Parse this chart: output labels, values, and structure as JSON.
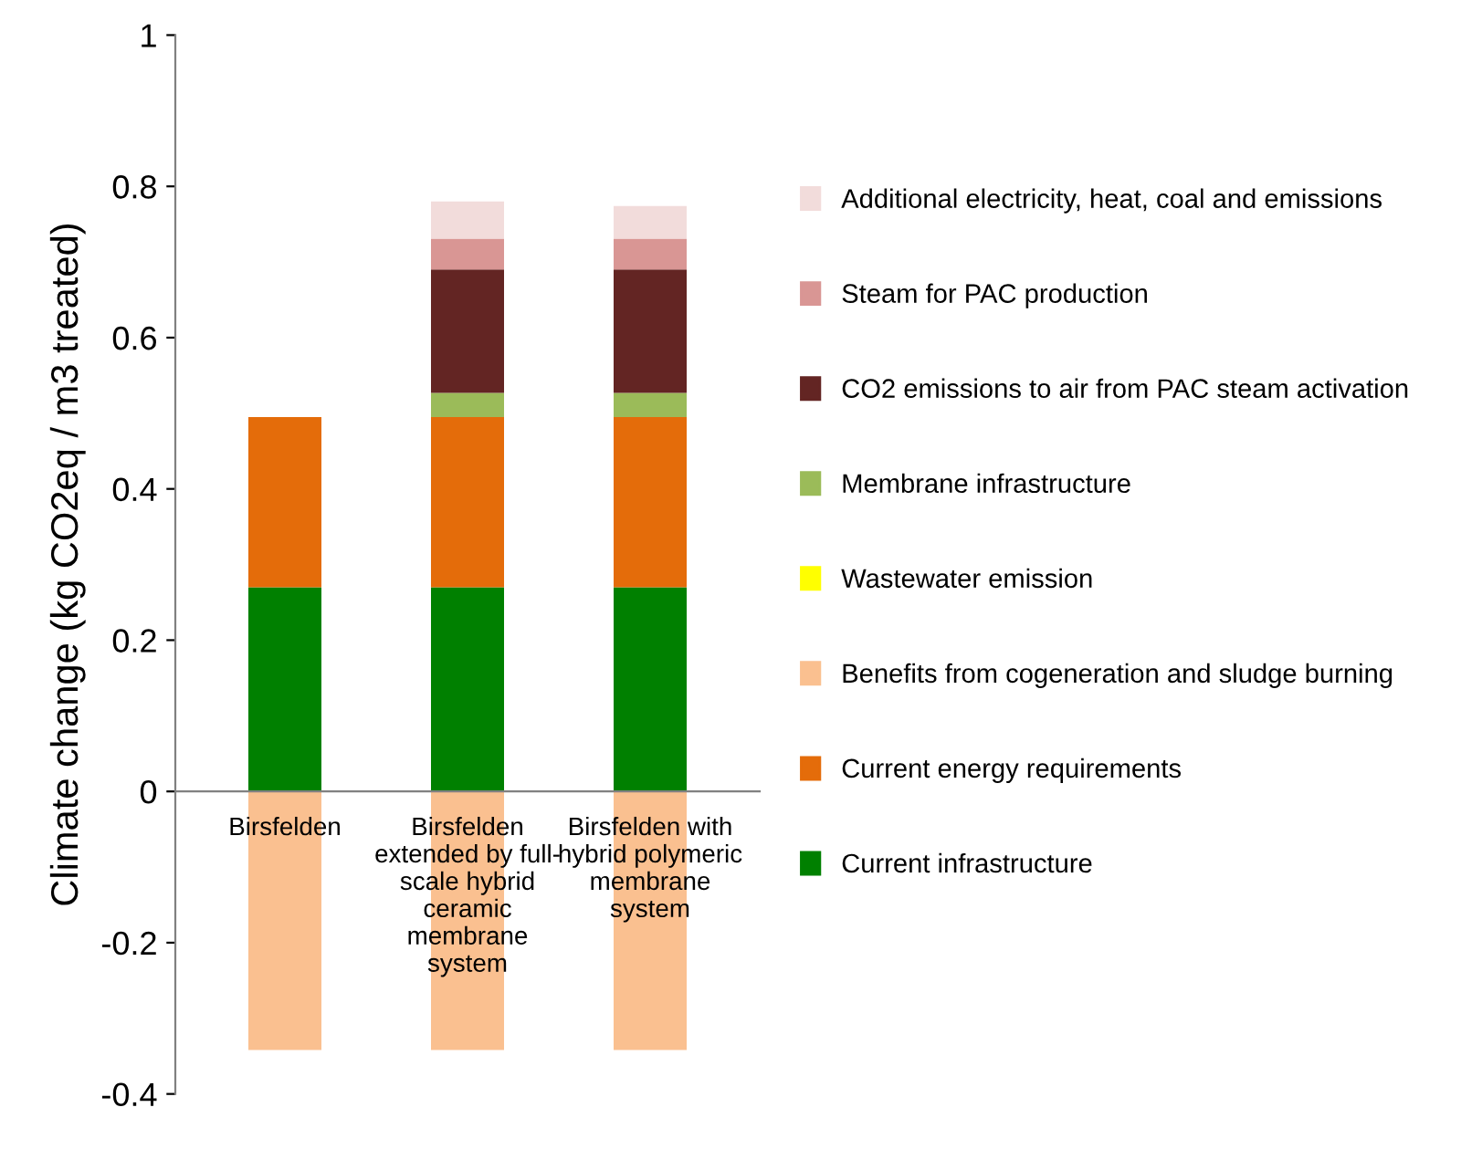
{
  "chart_data": {
    "type": "bar",
    "stacked": true,
    "ylabel": "Climate change (kg CO2eq / m3 treated)",
    "categories": [
      "Birsfelden",
      "Birsfelden\nextended by full-\nscale hybrid\nceramic\nmembrane\nsystem",
      "Birsfelden with\nhybrid polymeric\nmembrane\nsystem"
    ],
    "series": [
      {
        "name": "Current infrastructure",
        "color": "#008000",
        "values": [
          0.27,
          0.27,
          0.27
        ]
      },
      {
        "name": "Current energy requirements",
        "color": "#e46c0a",
        "values": [
          0.225,
          0.225,
          0.225
        ]
      },
      {
        "name": "Benefits from cogeneration and sludge burning",
        "color": "#fac090",
        "values": [
          -0.342,
          -0.342,
          -0.342
        ]
      },
      {
        "name": "Wastewater emission",
        "color": "#ffff00",
        "values": [
          0,
          0,
          0
        ]
      },
      {
        "name": "Membrane infrastructure",
        "color": "#9bbb59",
        "values": [
          0,
          0.032,
          0.032
        ]
      },
      {
        "name": "CO2 emissions to air from PAC steam activation",
        "color": "#632523",
        "values": [
          0,
          0.163,
          0.163
        ]
      },
      {
        "name": "Steam for PAC production",
        "color": "#d99694",
        "values": [
          0,
          0.041,
          0.041
        ]
      },
      {
        "name": "Additional electricity, heat, coal and emissions",
        "color": "#f2dcdb",
        "values": [
          0,
          0.049,
          0.043
        ]
      }
    ],
    "ylim": [
      -0.4,
      1
    ],
    "yticks": [
      -0.4,
      -0.2,
      0,
      0.2,
      0.4,
      0.6,
      0.8,
      1
    ],
    "legend": "right",
    "grid": false
  }
}
